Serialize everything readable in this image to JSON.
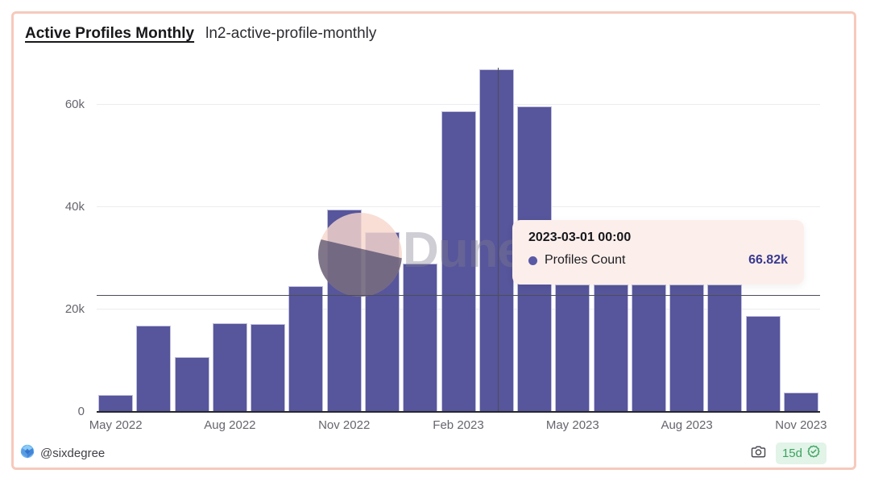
{
  "header": {
    "title": "Active Profiles Monthly",
    "subtitle": "ln2-active-profile-monthly"
  },
  "chart_data": {
    "type": "bar",
    "title": "Active Profiles Monthly",
    "series_name": "Profiles Count",
    "x": [
      "2022-05",
      "2022-06",
      "2022-07",
      "2022-08",
      "2022-09",
      "2022-10",
      "2022-11",
      "2022-12",
      "2023-01",
      "2023-02",
      "2023-03",
      "2023-04",
      "2023-05",
      "2023-06",
      "2023-07",
      "2023-08",
      "2023-09",
      "2023-10",
      "2023-11"
    ],
    "values": [
      3300,
      16800,
      10700,
      17300,
      17200,
      24500,
      39500,
      35100,
      28900,
      58600,
      66820,
      59600,
      24800,
      24800,
      24800,
      24800,
      24800,
      18700,
      3800
    ],
    "x_tick_labels": [
      "May 2022",
      "Aug 2022",
      "Nov 2022",
      "Feb 2023",
      "May 2023",
      "Aug 2023",
      "Nov 2023"
    ],
    "x_tick_indices": [
      0,
      3,
      6,
      9,
      12,
      15,
      18
    ],
    "y_ticks": [
      {
        "label": "0",
        "value": 0
      },
      {
        "label": "20k",
        "value": 20000
      },
      {
        "label": "40k",
        "value": 40000
      },
      {
        "label": "60k",
        "value": 60000
      }
    ],
    "ylim": [
      0,
      67800
    ],
    "grid": true,
    "legend_position": "none",
    "bar_color": "#57559b",
    "hovered_index": 10
  },
  "tooltip": {
    "title": "2023-03-01 00:00",
    "series_label": "Profiles Count",
    "value": "66.82k",
    "dot_color": "#5a59a6",
    "value_color": "#3a3a90",
    "background": "#fcefeb"
  },
  "watermark": {
    "text": "Dune"
  },
  "footer": {
    "author": "@sixdegree",
    "badge_label": "15d"
  },
  "colors": {
    "bar": "#57559b",
    "card_border": "#f6cabc",
    "gridline": "#ececf1",
    "axis_text": "#65656e",
    "badge_green": "#3aa45f",
    "badge_bg": "#e2f3e8"
  }
}
